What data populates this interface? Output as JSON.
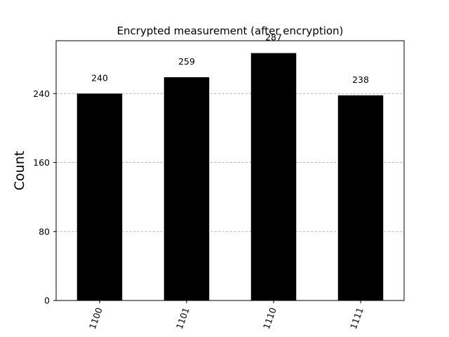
{
  "chart_data": {
    "type": "bar",
    "title": "Encrypted measurement (after encryption)",
    "xlabel": "",
    "ylabel": "Count",
    "categories": [
      "1100",
      "1101",
      "1110",
      "1111"
    ],
    "values": [
      240,
      259,
      287,
      238
    ],
    "value_labels": [
      "240",
      "259",
      "287",
      "238"
    ],
    "yticks": [
      0,
      80,
      160,
      240
    ],
    "ytick_labels": [
      "0",
      "80",
      "160",
      "240"
    ],
    "ylim": [
      0,
      301.35
    ],
    "grid": "y-dashed",
    "bar_color": "#000000",
    "grid_color": "#b0b0b0"
  }
}
